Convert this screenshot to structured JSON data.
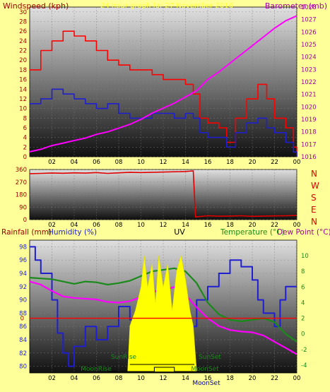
{
  "header": {
    "left_label": "Windspeed (kph)",
    "center_label": "24 hour graph for 27 November 2016",
    "right_label": "Barometer (mb)"
  },
  "bottom_header": {
    "rainfall_label": "Rainfall (mm)",
    "humidity_label": "Humidity (%)",
    "uv_label": "UV",
    "temperature_label": "Temperature (°C)",
    "dewpoint_label": "Dew Point (°C)"
  },
  "direction_labels": [
    "N",
    "W",
    "S",
    "E",
    "N"
  ],
  "event_labels": {
    "sunrise": "SunRise",
    "sunset": "SunSet",
    "moonrise": "MoonRise",
    "moonset": "MoonSet",
    "moonset_prefix": "MoonSet"
  },
  "colors": {
    "background": "#ffff99",
    "windspeed": "#ff0000",
    "gust_avg": "#1f1fd0",
    "barometer": "#ff00ff",
    "direction": "#e00000",
    "humidity": "#1f1fd0",
    "temperature": "#1a8a1a",
    "dewpoint": "#ff00ff",
    "uv": "#ffff00",
    "rain_line": "#ff0000",
    "axis_left": "#a00000",
    "axis_right": "#a000a0"
  },
  "chart_data": [
    {
      "type": "line",
      "title": "24 hour graph for 27 November 2016",
      "x_ticks": [
        "02",
        "04",
        "06",
        "08",
        "10",
        "12",
        "14",
        "16",
        "18",
        "20",
        "22",
        "00"
      ],
      "xlim_hours": [
        0,
        24
      ],
      "left_axis": {
        "label": "Windspeed (kph)",
        "ylim": [
          0,
          31
        ],
        "ticks": [
          0,
          2,
          4,
          6,
          8,
          10,
          12,
          14,
          16,
          18,
          20,
          22,
          24,
          26,
          28,
          30
        ]
      },
      "right_axis": {
        "label": "Barometer (mb)",
        "ylim": [
          1016,
          1028
        ],
        "ticks": [
          1016,
          1017,
          1018,
          1019,
          1020,
          1021,
          1022,
          1023,
          1024,
          1025,
          1026,
          1027,
          1028
        ]
      },
      "series": [
        {
          "name": "Windspeed (kph)",
          "axis": "left",
          "kind": "gust",
          "points": [
            [
              0,
              18
            ],
            [
              1,
              22
            ],
            [
              2,
              24
            ],
            [
              3,
              26
            ],
            [
              4,
              25
            ],
            [
              5,
              24
            ],
            [
              6,
              22
            ],
            [
              7,
              20
            ],
            [
              8,
              19
            ],
            [
              9,
              18
            ],
            [
              10,
              18
            ],
            [
              11,
              17
            ],
            [
              12,
              16
            ],
            [
              13,
              16
            ],
            [
              14,
              15
            ],
            [
              14.7,
              13
            ],
            [
              15.3,
              8
            ],
            [
              16,
              7
            ],
            [
              17,
              6
            ],
            [
              17.7,
              3
            ],
            [
              18.5,
              8
            ],
            [
              19.5,
              12
            ],
            [
              20.5,
              15
            ],
            [
              21.3,
              12
            ],
            [
              22,
              8
            ],
            [
              23,
              6
            ],
            [
              23.7,
              2
            ],
            [
              24,
              0
            ]
          ]
        },
        {
          "name": "Average windspeed (kph)",
          "axis": "left",
          "kind": "avg",
          "points": [
            [
              0,
              11
            ],
            [
              1,
              12
            ],
            [
              2,
              14
            ],
            [
              3,
              13
            ],
            [
              4,
              12
            ],
            [
              5,
              11
            ],
            [
              6,
              10
            ],
            [
              7,
              11
            ],
            [
              8,
              9
            ],
            [
              9,
              8
            ],
            [
              10,
              8
            ],
            [
              11,
              9
            ],
            [
              12,
              9
            ],
            [
              13,
              8
            ],
            [
              14,
              9
            ],
            [
              14.7,
              8
            ],
            [
              15.3,
              5
            ],
            [
              16,
              4
            ],
            [
              17,
              4
            ],
            [
              17.7,
              2
            ],
            [
              18.5,
              5
            ],
            [
              19.5,
              7
            ],
            [
              20.5,
              8
            ],
            [
              21.3,
              6
            ],
            [
              22,
              5
            ],
            [
              23,
              3
            ],
            [
              23.7,
              1
            ],
            [
              24,
              0
            ]
          ]
        },
        {
          "name": "Barometer (mb)",
          "axis": "right",
          "points": [
            [
              0,
              1016.4
            ],
            [
              1,
              1016.6
            ],
            [
              2,
              1016.9
            ],
            [
              3,
              1017.1
            ],
            [
              4,
              1017.3
            ],
            [
              5,
              1017.5
            ],
            [
              6,
              1017.8
            ],
            [
              7,
              1018.0
            ],
            [
              8,
              1018.3
            ],
            [
              9,
              1018.6
            ],
            [
              10,
              1019.0
            ],
            [
              11,
              1019.5
            ],
            [
              12,
              1019.9
            ],
            [
              13,
              1020.3
            ],
            [
              14,
              1020.8
            ],
            [
              15,
              1021.3
            ],
            [
              16,
              1022.2
            ],
            [
              17,
              1022.8
            ],
            [
              18,
              1023.5
            ],
            [
              19,
              1024.2
            ],
            [
              20,
              1024.9
            ],
            [
              21,
              1025.6
            ],
            [
              22,
              1026.3
            ],
            [
              23,
              1026.9
            ],
            [
              24,
              1027.3
            ]
          ]
        }
      ]
    },
    {
      "type": "scatter",
      "title": "",
      "x_ticks": [
        "02",
        "04",
        "06",
        "08",
        "10",
        "12",
        "14",
        "16",
        "18",
        "20",
        "22",
        "00"
      ],
      "xlim_hours": [
        0,
        24
      ],
      "left_axis": {
        "label": "",
        "ylim": [
          0,
          360
        ],
        "ticks": [
          0,
          90,
          180,
          270,
          360
        ]
      },
      "series": [
        {
          "name": "Wind direction",
          "axis": "left",
          "points": [
            [
              0,
              330
            ],
            [
              1,
              332
            ],
            [
              2,
              335
            ],
            [
              3,
              333
            ],
            [
              4,
              336
            ],
            [
              5,
              334
            ],
            [
              6,
              338
            ],
            [
              7,
              332
            ],
            [
              8,
              336
            ],
            [
              9,
              340
            ],
            [
              10,
              338
            ],
            [
              11,
              340
            ],
            [
              12,
              342
            ],
            [
              13,
              344
            ],
            [
              14,
              346
            ],
            [
              14.7,
              350
            ],
            [
              14.9,
              20
            ],
            [
              16,
              28
            ],
            [
              17,
              25
            ],
            [
              18,
              26
            ],
            [
              19,
              28
            ],
            [
              20,
              24
            ],
            [
              21,
              26
            ],
            [
              22,
              27
            ],
            [
              23,
              28
            ],
            [
              24,
              30
            ]
          ]
        }
      ]
    },
    {
      "type": "line",
      "title": "",
      "x_ticks": [
        "02",
        "04",
        "06",
        "08",
        "10",
        "12",
        "14",
        "16",
        "18",
        "20",
        "22",
        "00"
      ],
      "xlim_hours": [
        0,
        24
      ],
      "left_axis": {
        "label": "Humidity (%)",
        "ylim": [
          79,
          99
        ],
        "ticks": [
          80,
          82,
          84,
          86,
          88,
          90,
          92,
          94,
          96,
          98
        ]
      },
      "right_axis": {
        "label": "Temperature (°C)",
        "ylim": [
          -5,
          12
        ],
        "ticks": [
          -4,
          -2,
          0,
          2,
          4,
          6,
          8,
          10
        ]
      },
      "rain_axis": {
        "label": "Rainfall (mm)",
        "ticks": [
          0
        ]
      },
      "series": [
        {
          "name": "Humidity (%)",
          "axis": "left",
          "points": [
            [
              0,
              98
            ],
            [
              0.5,
              96
            ],
            [
              1,
              94
            ],
            [
              2,
              90
            ],
            [
              2.5,
              85
            ],
            [
              3,
              82
            ],
            [
              3.5,
              80
            ],
            [
              4,
              83
            ],
            [
              5,
              86
            ],
            [
              6,
              84
            ],
            [
              7,
              86
            ],
            [
              8,
              89
            ],
            [
              9,
              87
            ],
            [
              10,
              86
            ],
            [
              10.5,
              89
            ],
            [
              11,
              84
            ],
            [
              12,
              83
            ],
            [
              13,
              85
            ],
            [
              14,
              84
            ],
            [
              14.5,
              86
            ],
            [
              15,
              90
            ],
            [
              16,
              92
            ],
            [
              17,
              94
            ],
            [
              18,
              96
            ],
            [
              19,
              95
            ],
            [
              20,
              93
            ],
            [
              20.5,
              90
            ],
            [
              21,
              88
            ],
            [
              22,
              86
            ],
            [
              22.5,
              90
            ],
            [
              23,
              92
            ],
            [
              24,
              92
            ]
          ]
        },
        {
          "name": "Temperature (°C)",
          "axis": "right",
          "points": [
            [
              0,
              7.2
            ],
            [
              1,
              7.1
            ],
            [
              2,
              7.0
            ],
            [
              3,
              6.7
            ],
            [
              4,
              6.4
            ],
            [
              5,
              6.7
            ],
            [
              6,
              6.6
            ],
            [
              7,
              6.3
            ],
            [
              8,
              6.5
            ],
            [
              9,
              6.8
            ],
            [
              10,
              7.4
            ],
            [
              11,
              8.0
            ],
            [
              12,
              8.2
            ],
            [
              13,
              8.4
            ],
            [
              14,
              8.0
            ],
            [
              15,
              6.5
            ],
            [
              16,
              4.0
            ],
            [
              17,
              2.5
            ],
            [
              18,
              1.8
            ],
            [
              19,
              1.6
            ],
            [
              20,
              1.8
            ],
            [
              21,
              2.0
            ],
            [
              22,
              1.5
            ],
            [
              23,
              0.0
            ],
            [
              24,
              -1.0
            ]
          ]
        },
        {
          "name": "Dew Point (°C)",
          "axis": "right",
          "points": [
            [
              0,
              6.7
            ],
            [
              1,
              6.3
            ],
            [
              2,
              5.5
            ],
            [
              3,
              4.8
            ],
            [
              4,
              4.6
            ],
            [
              5,
              4.5
            ],
            [
              6,
              4.4
            ],
            [
              7,
              4.1
            ],
            [
              8,
              4.0
            ],
            [
              9,
              4.2
            ],
            [
              10,
              4.7
            ],
            [
              11,
              5.4
            ],
            [
              12,
              5.6
            ],
            [
              13,
              6.0
            ],
            [
              14,
              5.0
            ],
            [
              15,
              3.4
            ],
            [
              16,
              2.0
            ],
            [
              17,
              1.0
            ],
            [
              18,
              0.5
            ],
            [
              19,
              0.3
            ],
            [
              20,
              0.2
            ],
            [
              21,
              -0.2
            ],
            [
              22,
              -1.0
            ],
            [
              23,
              -1.8
            ],
            [
              24,
              -2.6
            ]
          ]
        },
        {
          "name": "UV",
          "axis": "right",
          "kind": "area",
          "points": [
            [
              8.8,
              -4.8
            ],
            [
              9,
              1
            ],
            [
              9.5,
              3
            ],
            [
              10,
              6
            ],
            [
              10.3,
              10
            ],
            [
              10.6,
              6
            ],
            [
              11,
              9
            ],
            [
              11.3,
              4
            ],
            [
              11.6,
              10
            ],
            [
              12,
              6
            ],
            [
              12.4,
              9
            ],
            [
              12.8,
              3
            ],
            [
              13.2,
              8
            ],
            [
              13.6,
              10
            ],
            [
              14,
              7
            ],
            [
              14.4,
              3
            ],
            [
              14.7,
              1
            ],
            [
              15,
              -4.8
            ]
          ]
        },
        {
          "name": "Rainfall (mm)",
          "axis": "rain",
          "points": [
            [
              0,
              0
            ],
            [
              24,
              0
            ]
          ]
        }
      ],
      "events": {
        "sunrise_hour": 9.0,
        "sunset_hour": 14.8,
        "moonrise_hour": 7.0,
        "moonset_hour": 15.2
      }
    }
  ]
}
